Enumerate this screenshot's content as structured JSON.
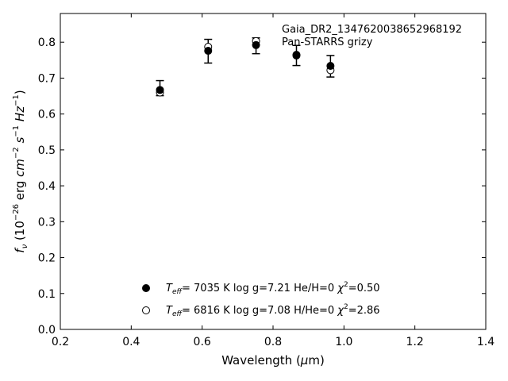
{
  "chart_data": {
    "type": "scatter",
    "xlabel": "Wavelength (μm)",
    "ylabel": "fν (10⁻²⁶ erg cm⁻² s⁻¹ Hz⁻¹)",
    "xlim": [
      0.2,
      1.4
    ],
    "ylim": [
      0.0,
      0.88
    ],
    "xticks": [
      0.2,
      0.4,
      0.6,
      0.8,
      1.0,
      1.2,
      1.4
    ],
    "yticks": [
      0.0,
      0.1,
      0.2,
      0.3,
      0.4,
      0.5,
      0.6,
      0.7,
      0.8
    ],
    "xtick_labels": [
      "0.2",
      "0.4",
      "0.6",
      "0.8",
      "1.0",
      "1.2",
      "1.4"
    ],
    "ytick_labels": [
      "0.0",
      "0.1",
      "0.2",
      "0.3",
      "0.4",
      "0.5",
      "0.6",
      "0.7",
      "0.8"
    ],
    "grid": false,
    "legend_position": "bottom-center",
    "annotations": [
      "Gaia_DR2_1347620038652968192",
      "Pan-STARRS grizy"
    ],
    "observed": {
      "x": [
        0.481,
        0.617,
        0.752,
        0.866,
        0.962
      ],
      "y": [
        0.672,
        0.775,
        0.79,
        0.763,
        0.733
      ],
      "yerr": [
        0.021,
        0.033,
        0.022,
        0.028,
        0.03
      ]
    },
    "series": [
      {
        "marker": "filled-circle",
        "label": "T_eff=  7035 K  log g=7.21  He/H=0  χ²=0.50",
        "label_parts": {
          "teff": "T",
          "teff_sub": "eff",
          "rest1": "=  7035 K  log g=7.21  He/H=0  ",
          "chi": "χ",
          "chi_sup": "2",
          "rest2": "=0.50"
        },
        "x": [
          0.481,
          0.617,
          0.752,
          0.866,
          0.962
        ],
        "y": [
          0.667,
          0.776,
          0.792,
          0.763,
          0.734
        ]
      },
      {
        "marker": "open-circle",
        "label": "T_eff=  6816 K  log g=7.08  H/He=0  χ²=2.86",
        "label_parts": {
          "teff": "T",
          "teff_sub": "eff",
          "rest1": "=  6816 K  log g=7.08  H/He=0  ",
          "chi": "χ",
          "chi_sup": "2",
          "rest2": "=2.86"
        },
        "x": [
          0.481,
          0.617,
          0.752,
          0.866,
          0.962
        ],
        "y": [
          0.66,
          0.787,
          0.803,
          0.765,
          0.722
        ]
      }
    ],
    "colors": {
      "marker": "#000000",
      "axis": "#000000",
      "background": "#ffffff"
    }
  }
}
